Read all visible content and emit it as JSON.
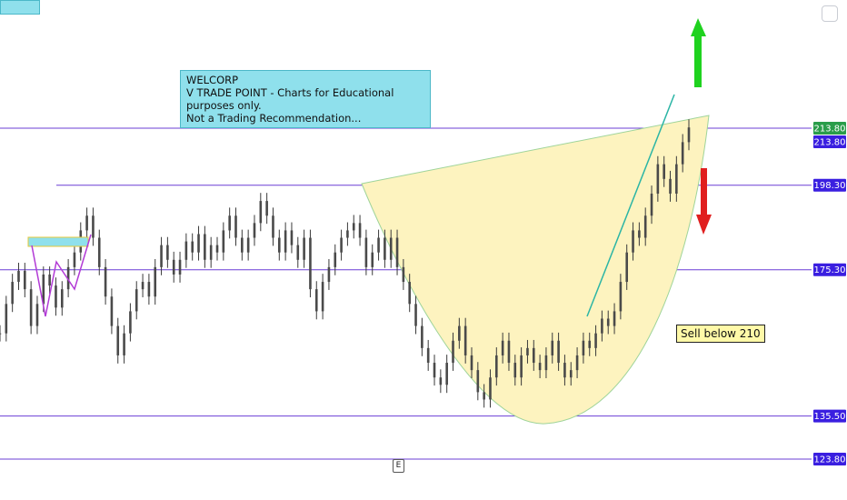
{
  "chart_data": {
    "type": "candlestick",
    "symbol": "WELCORP",
    "y_axis_labels": [
      {
        "value": 213.8,
        "text": "213.80",
        "color": "#2a9d4a"
      },
      {
        "value": 213.8,
        "text": "213.80",
        "color": "#3a1fe0"
      },
      {
        "value": 198.3,
        "text": "198.30",
        "color": "#3a1fe0"
      },
      {
        "value": 175.3,
        "text": "175.30",
        "color": "#3a1fe0"
      },
      {
        "value": 135.5,
        "text": "135.50",
        "color": "#3a1fe0"
      },
      {
        "value": 123.8,
        "text": "123.80",
        "color": "#3a1fe0"
      }
    ],
    "horizontal_levels": [
      213.8,
      198.3,
      175.3,
      135.5,
      123.8
    ],
    "price_path": [
      158,
      166,
      172,
      175,
      170,
      160,
      166,
      174,
      171,
      165,
      170,
      176,
      180,
      186,
      190,
      184,
      176,
      168,
      160,
      152,
      158,
      164,
      170,
      172,
      168,
      176,
      182,
      178,
      174,
      178,
      183,
      180,
      185,
      178,
      182,
      180,
      186,
      190,
      184,
      180,
      184,
      188,
      194,
      190,
      184,
      180,
      186,
      182,
      178,
      184,
      170,
      164,
      172,
      176,
      180,
      184,
      186,
      188,
      184,
      176,
      180,
      184,
      178,
      184,
      176,
      172,
      166,
      160,
      154,
      150,
      146,
      144,
      150,
      156,
      160,
      152,
      148,
      142,
      140,
      146,
      152,
      156,
      150,
      146,
      152,
      154,
      150,
      148,
      152,
      156,
      150,
      146,
      148,
      152,
      156,
      154,
      158,
      162,
      160,
      164,
      172,
      180,
      186,
      184,
      190,
      196,
      204,
      200,
      196,
      204,
      210,
      214
    ],
    "cup_fill": "#fdf3bf",
    "trendline_color": "#2bb5a5",
    "level_color": "#6b3fd6",
    "note_lines": [
      "WELCORP",
      "V TRADE POINT - Charts for Educational purposes only.",
      "Not a Trading Recommendation..."
    ],
    "callout": "Sell below 210",
    "event_marker": "E",
    "up_arrow_color": "#1fd21f",
    "down_arrow_color": "#e01f1f"
  }
}
